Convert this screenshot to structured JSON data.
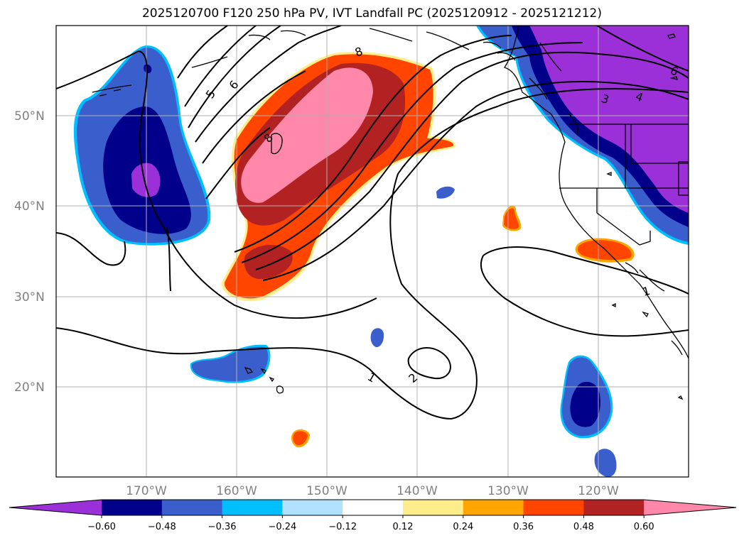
{
  "title": "2025120700 F120 250 hPa PV, IVT Landfall PC (2025120912 - 2025121212)",
  "map": {
    "projection": "plate-carree",
    "lon_range": [
      -180,
      -110
    ],
    "lat_range": [
      10,
      60
    ],
    "grid": true,
    "lat_ticks": [
      {
        "lat": 50,
        "label": "50°N"
      },
      {
        "lat": 40,
        "label": "40°N"
      },
      {
        "lat": 30,
        "label": "30°N"
      },
      {
        "lat": 20,
        "label": "20°N"
      }
    ],
    "lon_ticks": [
      {
        "lon": -170,
        "label": "170°W"
      },
      {
        "lon": -160,
        "label": "160°W"
      },
      {
        "lon": -150,
        "label": "150°W"
      },
      {
        "lon": -140,
        "label": "140°W"
      },
      {
        "lon": -130,
        "label": "130°W"
      },
      {
        "lon": -120,
        "label": "120°W"
      }
    ],
    "contour_labels": [
      "8",
      "6",
      "5",
      "8",
      "4",
      "3",
      "6",
      "1",
      "1",
      "2"
    ]
  },
  "colorbar": {
    "extend": "both",
    "colors": [
      "#9b30d9",
      "#00008b",
      "#3a5fcd",
      "#00bfff",
      "#b0e2ff",
      "#ffffff",
      "#ffec8b",
      "#ffa500",
      "#ff4500",
      "#b22222",
      "#ff88aa"
    ],
    "tick_labels": [
      "−0.60",
      "−0.48",
      "−0.36",
      "−0.24",
      "−0.12",
      "0.12",
      "0.24",
      "0.36",
      "0.48",
      "0.60"
    ]
  }
}
